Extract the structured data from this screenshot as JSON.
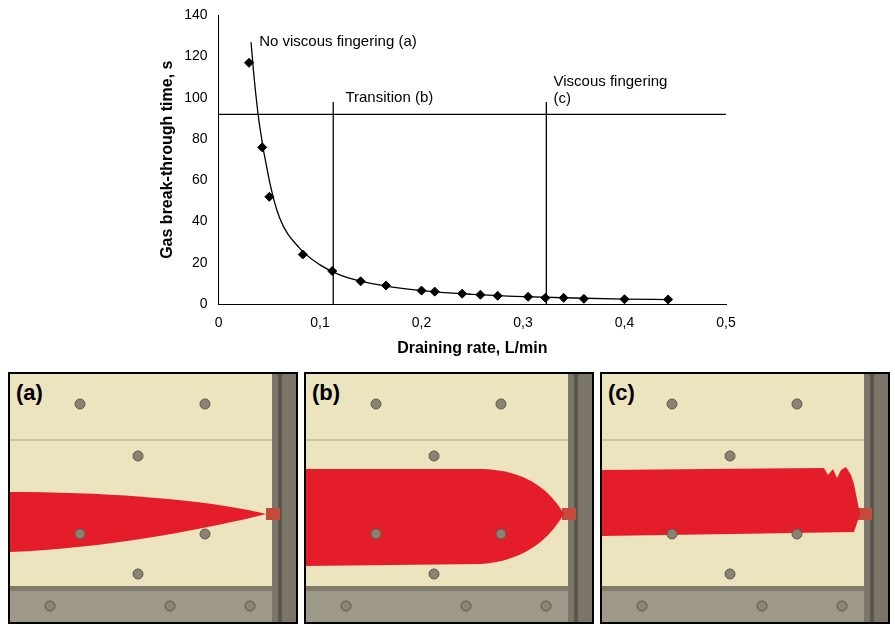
{
  "chart_data": {
    "type": "scatter",
    "x_label": "Draining rate, L/min",
    "y_label": "Gas break-through time, s",
    "xlim": [
      0,
      0.5
    ],
    "xticks": [
      0,
      {
        "value": 0.1,
        "label": "0,1"
      },
      {
        "value": 0.2,
        "label": "0,2"
      },
      {
        "value": 0.3,
        "label": "0,3"
      },
      {
        "value": 0.4,
        "label": "0,4"
      },
      {
        "value": 0.5,
        "label": "0,5"
      }
    ],
    "ylim": [
      0,
      140
    ],
    "yticks": [
      0,
      20,
      40,
      60,
      80,
      100,
      120,
      140
    ],
    "grid": false,
    "series": [
      {
        "type": "scatter",
        "marker": "diamond",
        "color": "#000000",
        "x": [
          0.03,
          0.043,
          0.05,
          0.083,
          0.112,
          0.14,
          0.165,
          0.2,
          0.213,
          0.24,
          0.258,
          0.275,
          0.305,
          0.322,
          0.34,
          0.36,
          0.4,
          0.443
        ],
        "values": [
          117,
          76,
          52,
          24,
          16,
          11,
          9,
          6.5,
          6,
          5,
          4.5,
          4,
          3.5,
          3,
          3,
          2.5,
          2.3,
          2.2
        ]
      },
      {
        "type": "line",
        "line_style": "solid",
        "color": "#000000",
        "x": [
          0.032,
          0.035,
          0.04,
          0.05,
          0.06,
          0.08,
          0.1,
          0.12,
          0.15,
          0.2,
          0.25,
          0.3,
          0.35,
          0.4,
          0.443
        ],
        "values": [
          127,
          110,
          88,
          60,
          42,
          27,
          19,
          14,
          10,
          6.5,
          4.7,
          3.6,
          2.9,
          2.4,
          2.1
        ]
      },
      {
        "type": "line",
        "line_style": "solid",
        "color": "#000000",
        "x": [
          0,
          0.5
        ],
        "values": [
          92,
          92
        ]
      },
      {
        "type": "line",
        "line_style": "solid",
        "color": "#000000",
        "x": [
          0.113,
          0.113
        ],
        "values": [
          0,
          98
        ]
      },
      {
        "type": "line",
        "line_style": "solid",
        "color": "#000000",
        "x": [
          0.323,
          0.323
        ],
        "values": [
          0,
          98
        ]
      }
    ],
    "annotations": [
      {
        "text": [
          "No viscous fingering (a)"
        ],
        "x": 0.04,
        "y": 127
      },
      {
        "text": [
          "Transition (b)"
        ],
        "x": 0.125,
        "y": 100
      },
      {
        "text": [
          "Viscous fingering",
          "(c)"
        ],
        "x": 0.33,
        "y": 108
      }
    ]
  },
  "panels": [
    {
      "label": "(a)"
    },
    {
      "label": "(b)"
    },
    {
      "label": "(c)"
    }
  ]
}
